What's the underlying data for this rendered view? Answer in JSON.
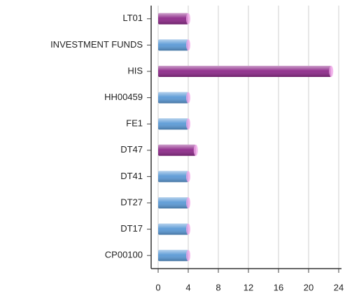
{
  "chart_data": {
    "type": "barh",
    "categories": [
      "LT01",
      "INVESTMENT FUNDS",
      "HIS",
      "HH00459",
      "FE1",
      "DT47",
      "DT41",
      "DT27",
      "DT17",
      "CP00100"
    ],
    "values": [
      4,
      4,
      23,
      4,
      4,
      5,
      4,
      4,
      4,
      4
    ],
    "colors": [
      "#8e2a8a",
      "#5b9ad6",
      "#8e2a8a",
      "#5b9ad6",
      "#5b9ad6",
      "#8e2a8a",
      "#5b9ad6",
      "#5b9ad6",
      "#5b9ad6",
      "#5b9ad6"
    ],
    "xlim": [
      0,
      24
    ],
    "xticks": [
      0,
      4,
      8,
      12,
      16,
      20,
      24
    ],
    "grid": true
  }
}
